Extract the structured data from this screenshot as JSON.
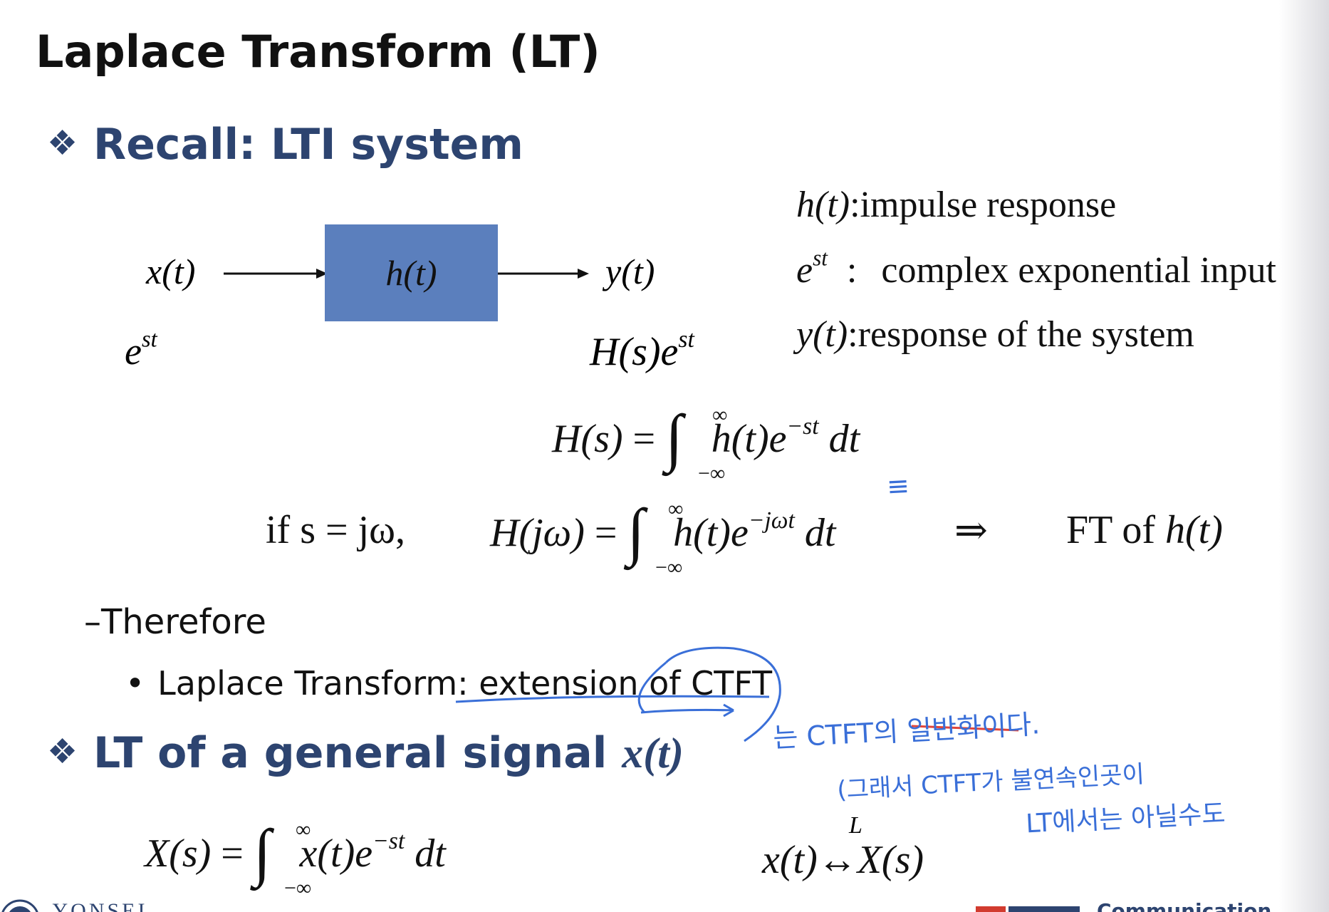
{
  "slide": {
    "title": "Laplace Transform (LT)",
    "section1": {
      "bullet": "❖",
      "heading": "Recall: LTI system"
    },
    "diagram": {
      "input_signal": "x(t)",
      "box_label": "h(t)",
      "output_signal": "y(t)",
      "input_exp": "e",
      "input_exp_sup": "st",
      "output_exp": "H(s)e",
      "output_exp_sup": "st"
    },
    "legend": [
      {
        "symbol": "h(t)",
        "sep": ":",
        "text": "impulse response"
      },
      {
        "symbol": "e",
        "symbol_sup": "st",
        "sep": ":",
        "text": "complex exponential input"
      },
      {
        "symbol": "y(t)",
        "sep": ":",
        "text": "response of  the system"
      }
    ],
    "equation1": {
      "lhs": "H(s)",
      "eq": "=",
      "upper": "∞",
      "lower": "−∞",
      "integrand": "h(t)e",
      "exp": "−st",
      "dt": "dt"
    },
    "equation2": {
      "condition": "if  s = jω,",
      "lhs": "H(jω)",
      "eq": "=",
      "upper": "∞",
      "lower": "−∞",
      "integrand": "h(t)e",
      "exp": "−jωt",
      "dt": "dt",
      "implies": "⇒",
      "result_prefix": "FT of ",
      "result_symbol": "h(t)"
    },
    "therefore": {
      "dash": "–",
      "text": "Therefore"
    },
    "bullet_item": {
      "dot": "•",
      "prefix": "Laplace Transform: ",
      "underlined": "extension of CTFT"
    },
    "section2": {
      "bullet": "❖",
      "heading": "LT of a general signal ",
      "symbol": "x(t)"
    },
    "equation3": {
      "lhs": "X(s)",
      "eq": "=",
      "upper": "∞",
      "lower": "−∞",
      "integrand": "x(t)e",
      "exp": "−st",
      "dt": "dt"
    },
    "pair": {
      "label": "L",
      "lhs": "x(t)",
      "arrow": "↔",
      "rhs": "X(s)"
    },
    "handwritten": {
      "mark": "≡",
      "line1": "는 CTFT의 일반화이다.",
      "line2": "(그래서 CTFT가 불연속인곳이",
      "line3": "LT에서는 아닐수도"
    },
    "footer": {
      "left_logo": "YONSEI",
      "right_logo": "Communication"
    }
  }
}
